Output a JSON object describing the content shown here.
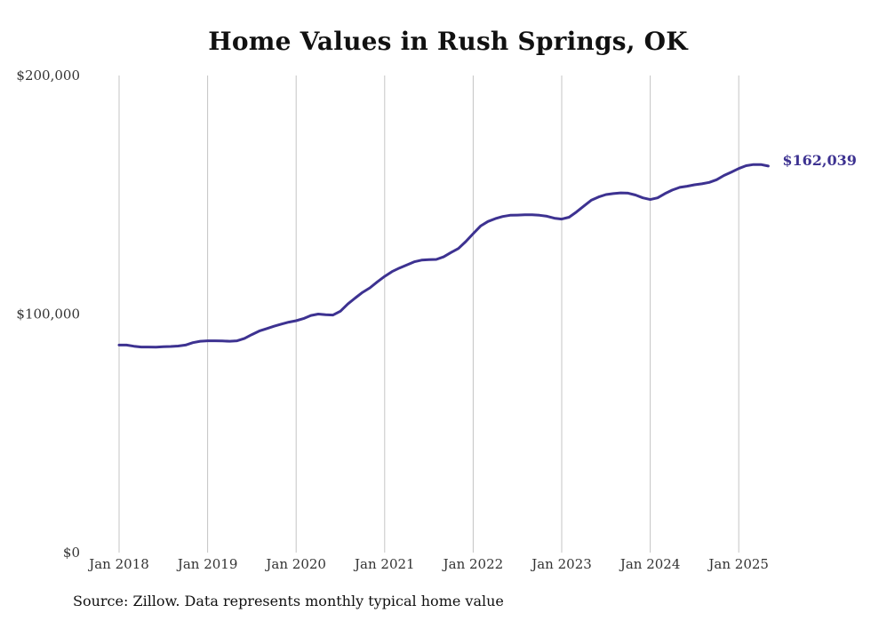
{
  "chart_data": {
    "type": "line",
    "title": "Home Values in Rush Springs, OK",
    "xlabel": "",
    "ylabel": "",
    "ylim": [
      0,
      200000
    ],
    "yticks": [
      0,
      100000,
      200000
    ],
    "ytick_labels": [
      "$0",
      "$100,000",
      "$200,000"
    ],
    "xticks": [
      "2018-01",
      "2019-01",
      "2020-01",
      "2021-01",
      "2022-01",
      "2023-01",
      "2024-01",
      "2025-01"
    ],
    "xtick_labels": [
      "Jan 2018",
      "Jan 2019",
      "Jan 2020",
      "Jan 2021",
      "Jan 2022",
      "Jan 2023",
      "Jan 2024",
      "Jan 2025"
    ],
    "grid": "vertical",
    "end_label": "$162,039",
    "series": [
      {
        "color": "#3d3291",
        "points": [
          [
            "2018-01",
            87000
          ],
          [
            "2018-02",
            87000
          ],
          [
            "2018-03",
            86500
          ],
          [
            "2018-04",
            86200
          ],
          [
            "2018-05",
            86200
          ],
          [
            "2018-06",
            86100
          ],
          [
            "2018-07",
            86300
          ],
          [
            "2018-08",
            86400
          ],
          [
            "2018-09",
            86600
          ],
          [
            "2018-10",
            87000
          ],
          [
            "2018-11",
            88000
          ],
          [
            "2018-12",
            88600
          ],
          [
            "2019-01",
            88800
          ],
          [
            "2019-02",
            88800
          ],
          [
            "2019-03",
            88700
          ],
          [
            "2019-04",
            88600
          ],
          [
            "2019-05",
            88800
          ],
          [
            "2019-06",
            89800
          ],
          [
            "2019-07",
            91400
          ],
          [
            "2019-08",
            92900
          ],
          [
            "2019-09",
            93900
          ],
          [
            "2019-10",
            94900
          ],
          [
            "2019-11",
            95800
          ],
          [
            "2019-12",
            96600
          ],
          [
            "2020-01",
            97200
          ],
          [
            "2020-02",
            98100
          ],
          [
            "2020-03",
            99400
          ],
          [
            "2020-04",
            100000
          ],
          [
            "2020-05",
            99700
          ],
          [
            "2020-06",
            99600
          ],
          [
            "2020-07",
            101200
          ],
          [
            "2020-08",
            104200
          ],
          [
            "2020-09",
            106700
          ],
          [
            "2020-10",
            109100
          ],
          [
            "2020-11",
            111000
          ],
          [
            "2020-12",
            113500
          ],
          [
            "2021-01",
            115800
          ],
          [
            "2021-02",
            117800
          ],
          [
            "2021-03",
            119300
          ],
          [
            "2021-04",
            120600
          ],
          [
            "2021-05",
            121900
          ],
          [
            "2021-06",
            122600
          ],
          [
            "2021-07",
            122800
          ],
          [
            "2021-08",
            122900
          ],
          [
            "2021-09",
            124000
          ],
          [
            "2021-10",
            125800
          ],
          [
            "2021-11",
            127500
          ],
          [
            "2021-12",
            130400
          ],
          [
            "2022-01",
            133700
          ],
          [
            "2022-02",
            136900
          ],
          [
            "2022-03",
            138800
          ],
          [
            "2022-04",
            140000
          ],
          [
            "2022-05",
            140900
          ],
          [
            "2022-06",
            141400
          ],
          [
            "2022-07",
            141500
          ],
          [
            "2022-08",
            141600
          ],
          [
            "2022-09",
            141600
          ],
          [
            "2022-10",
            141400
          ],
          [
            "2022-11",
            141000
          ],
          [
            "2022-12",
            140200
          ],
          [
            "2023-01",
            139800
          ],
          [
            "2023-02",
            140600
          ],
          [
            "2023-03",
            142800
          ],
          [
            "2023-04",
            145300
          ],
          [
            "2023-05",
            147700
          ],
          [
            "2023-06",
            149100
          ],
          [
            "2023-07",
            150100
          ],
          [
            "2023-08",
            150500
          ],
          [
            "2023-09",
            150800
          ],
          [
            "2023-10",
            150700
          ],
          [
            "2023-11",
            149900
          ],
          [
            "2023-12",
            148700
          ],
          [
            "2024-01",
            148000
          ],
          [
            "2024-02",
            148700
          ],
          [
            "2024-03",
            150500
          ],
          [
            "2024-04",
            152000
          ],
          [
            "2024-05",
            153100
          ],
          [
            "2024-06",
            153600
          ],
          [
            "2024-07",
            154200
          ],
          [
            "2024-08",
            154600
          ],
          [
            "2024-09",
            155200
          ],
          [
            "2024-10",
            156300
          ],
          [
            "2024-11",
            158100
          ],
          [
            "2024-12",
            159500
          ],
          [
            "2025-01",
            161000
          ],
          [
            "2025-02",
            162200
          ],
          [
            "2025-03",
            162700
          ],
          [
            "2025-04",
            162700
          ],
          [
            "2025-05",
            162039
          ]
        ]
      }
    ]
  },
  "source_note": "Source: Zillow. Data represents monthly typical home value"
}
